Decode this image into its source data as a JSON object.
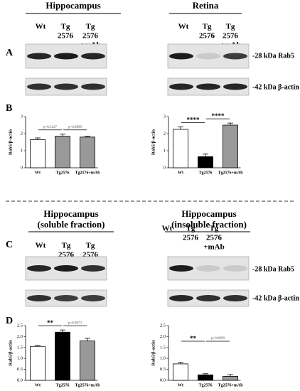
{
  "panel_labels": [
    "A",
    "B",
    "C",
    "D"
  ],
  "top": {
    "titles": [
      "Hippocampus",
      "Retina"
    ],
    "lanes": [
      [
        "Wt"
      ],
      [
        "Tg",
        "2576"
      ],
      [
        "Tg",
        "2576",
        "+mAb"
      ]
    ]
  },
  "bottom": {
    "titles": [
      [
        "Hippocampus",
        "(soluble fraction)"
      ],
      [
        "Hippocampus",
        "(insoluble fraction)"
      ]
    ],
    "lanes": [
      [
        "Wt"
      ],
      [
        "Tg",
        "2576"
      ],
      [
        "Tg",
        "2576",
        "+mAb"
      ]
    ]
  },
  "blot_labels": [
    "-28 kDa Rab5",
    "-42 kDa β-actin"
  ],
  "chart_data": [
    {
      "type": "bar",
      "y_label": "Rab5/β-actin",
      "categories": [
        "Wt",
        "Tg2576",
        "Tg2576+mAb"
      ],
      "values": [
        1.65,
        1.85,
        1.8
      ],
      "errors": [
        0.1,
        0.12,
        0.05
      ],
      "colors": [
        "#ffffff",
        "#999999",
        "#999999"
      ],
      "ylim": [
        0,
        3
      ],
      "yticks": [
        0,
        1,
        2,
        3
      ],
      "annotations": [
        "p=0.3127",
        "p=0.9999"
      ]
    },
    {
      "type": "bar",
      "y_label": "Rab5/β-actin",
      "categories": [
        "Wt",
        "Tg2576",
        "Tg2576+mAb"
      ],
      "values": [
        2.25,
        0.65,
        2.5
      ],
      "errors": [
        0.15,
        0.15,
        0.12
      ],
      "colors": [
        "#ffffff",
        "#000000",
        "#999999"
      ],
      "ylim": [
        0,
        3
      ],
      "yticks": [
        0,
        1,
        2,
        3
      ],
      "annotations": [
        "****",
        "****"
      ]
    },
    {
      "type": "bar",
      "y_label": "Rab5/β-actin",
      "categories": [
        "Wt",
        "Tg2576",
        "Tg2576+mAb"
      ],
      "values": [
        1.55,
        2.2,
        1.8
      ],
      "errors": [
        0.05,
        0.1,
        0.12
      ],
      "colors": [
        "#ffffff",
        "#000000",
        "#999999"
      ],
      "ylim": [
        0,
        2.5
      ],
      "yticks": [
        {
          "value": 0,
          "label": "0.0"
        },
        0.5,
        {
          "value": 1,
          "label": "1.0"
        },
        1.5,
        {
          "value": 2,
          "label": "2.0"
        },
        2.5
      ],
      "annotations": [
        "**",
        "p=0.0673"
      ]
    },
    {
      "type": "bar",
      "y_label": "Rab5/β-actin",
      "categories": [
        "Wt",
        "Tg2576",
        "Tg2576+mAb"
      ],
      "values": [
        0.75,
        0.25,
        0.18
      ],
      "errors": [
        0.07,
        0.05,
        0.08
      ],
      "colors": [
        "#ffffff",
        "#000000",
        "#999999"
      ],
      "ylim": [
        0,
        2.5
      ],
      "yticks": [
        {
          "value": 0,
          "label": "0.0"
        },
        0.5,
        {
          "value": 1,
          "label": "1.0"
        },
        1.5,
        {
          "value": 2,
          "label": "2.0"
        },
        2.5
      ],
      "annotations": [
        "**",
        "p=0.9999"
      ]
    }
  ]
}
